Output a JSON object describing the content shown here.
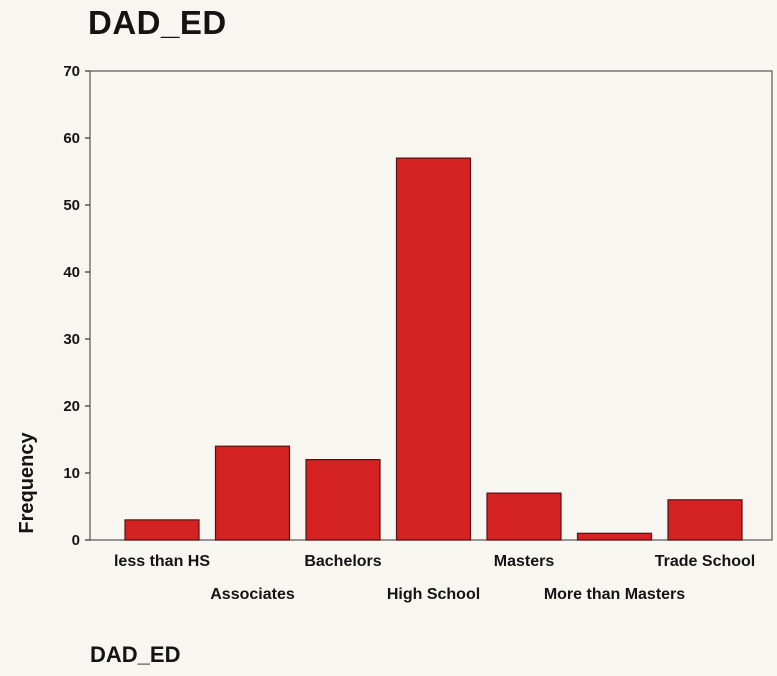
{
  "chart_data": {
    "type": "bar",
    "title": "DAD_ED",
    "xlabel": "DAD_ED",
    "ylabel": "Frequency",
    "ylim": [
      0,
      70
    ],
    "yticks": [
      0,
      10,
      20,
      30,
      40,
      50,
      60,
      70
    ],
    "categories": [
      "less than HS",
      "Associates",
      "Bachelors",
      "High School",
      "Masters",
      "More than Masters",
      "Trade School"
    ],
    "values": [
      3,
      14,
      12,
      57,
      7,
      1,
      6
    ],
    "bar_color": "#d42222",
    "grid": false
  }
}
